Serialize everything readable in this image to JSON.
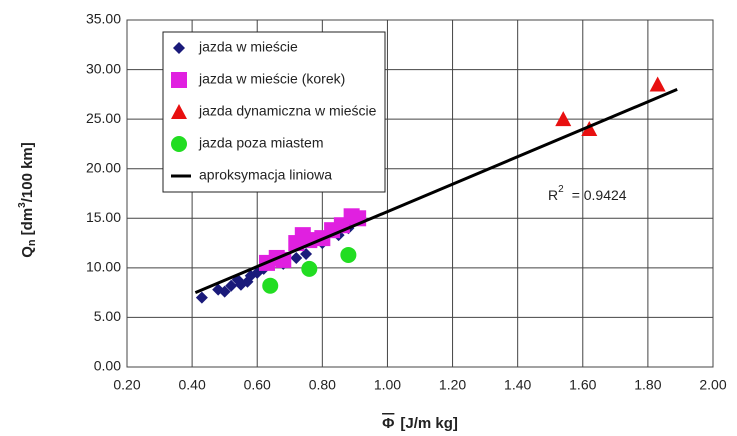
{
  "chart_data": {
    "type": "scatter",
    "x_label": {
      "symbol": "Φ",
      "unit": "[J/m kg]"
    },
    "y_label": {
      "symbol": "Q",
      "subscript": "n",
      "unit_start": "[dm",
      "superscript": "3",
      "unit_end": "/100 km]"
    },
    "annotation": {
      "base": "R",
      "superscript": "2",
      "text": "= 0.9424"
    },
    "xlim": [
      0.2,
      2.0
    ],
    "ylim": [
      0,
      35
    ],
    "xticks": [
      {
        "value": 0.2,
        "label": "0.20"
      },
      {
        "value": 0.4,
        "label": "0.40"
      },
      {
        "value": 0.6,
        "label": "0.60"
      },
      {
        "value": 0.8,
        "label": "0.80"
      },
      {
        "value": 1.0,
        "label": "1.00"
      },
      {
        "value": 1.2,
        "label": "1.20"
      },
      {
        "value": 1.4,
        "label": "1.40"
      },
      {
        "value": 1.6,
        "label": "1.60"
      },
      {
        "value": 1.8,
        "label": "1.80"
      },
      {
        "value": 2.0,
        "label": "2.00"
      }
    ],
    "yticks": [
      {
        "value": 0,
        "label": "0.00"
      },
      {
        "value": 5,
        "label": "5.00"
      },
      {
        "value": 10,
        "label": "10.00"
      },
      {
        "value": 15,
        "label": "15.00"
      },
      {
        "value": 20,
        "label": "20.00"
      },
      {
        "value": 25,
        "label": "25.00"
      },
      {
        "value": 30,
        "label": "30.00"
      },
      {
        "value": 35,
        "label": "35.00"
      }
    ],
    "grid": true,
    "legend": "top-left",
    "series": [
      {
        "name": "jazda w mieście",
        "marker": "diamond",
        "color": "#1a1a7a",
        "x": [
          0.43,
          0.48,
          0.5,
          0.52,
          0.54,
          0.55,
          0.57,
          0.58,
          0.6,
          0.62,
          0.68,
          0.72,
          0.75,
          0.8,
          0.85,
          0.88
        ],
        "values": [
          7.0,
          7.8,
          7.6,
          8.2,
          8.8,
          8.3,
          8.6,
          9.2,
          9.5,
          9.9,
          10.4,
          11.0,
          11.4,
          12.5,
          13.3,
          14.0
        ]
      },
      {
        "name": "jazda w mieście (korek)",
        "marker": "square",
        "color": "#e020e0",
        "x": [
          0.63,
          0.66,
          0.68,
          0.72,
          0.74,
          0.76,
          0.8,
          0.83,
          0.86,
          0.89,
          0.91
        ],
        "values": [
          10.5,
          11.0,
          10.8,
          12.5,
          13.3,
          12.8,
          13.0,
          13.8,
          14.3,
          15.2,
          15.0
        ]
      },
      {
        "name": "jazda dynamiczna w mieście",
        "marker": "triangle",
        "color": "#e81010",
        "x": [
          1.54,
          1.62,
          1.83
        ],
        "values": [
          25.0,
          24.0,
          28.5
        ]
      },
      {
        "name": "jazda poza miastem",
        "marker": "circle",
        "color": "#22dd22",
        "x": [
          0.64,
          0.76,
          0.88
        ],
        "values": [
          8.2,
          9.9,
          11.3
        ]
      },
      {
        "name": "aproksymacja liniowa",
        "marker": "line",
        "color": "#000000",
        "x": [
          0.41,
          1.89
        ],
        "values": [
          7.5,
          28.0
        ]
      }
    ]
  }
}
